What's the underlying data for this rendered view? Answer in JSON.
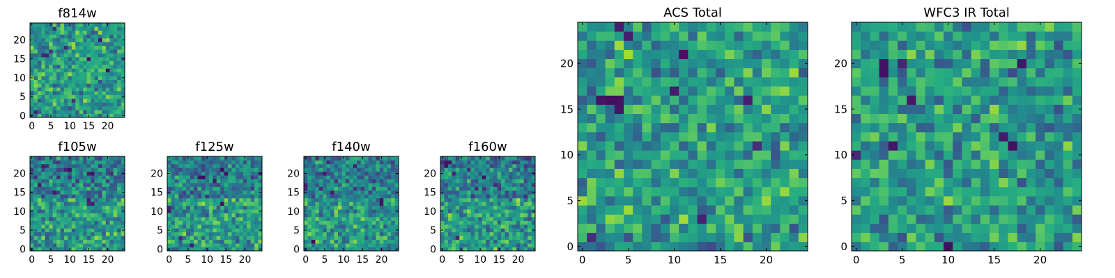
{
  "chart_data": [
    {
      "type": "heatmap",
      "title": "f814w",
      "xlabel": "",
      "ylabel": "",
      "grid_size": 25,
      "xlim": [
        -0.5,
        24.5
      ],
      "ylim": [
        -0.5,
        24.5
      ],
      "x_ticks": [
        0,
        5,
        10,
        15,
        20
      ],
      "y_ticks": [
        0,
        5,
        10,
        15,
        20
      ],
      "colormap": "viridis",
      "grid": false,
      "seed": 11,
      "low_cells": [
        [
          1,
          1
        ],
        [
          3,
          16
        ],
        [
          4,
          16
        ],
        [
          5,
          17
        ],
        [
          9,
          18
        ],
        [
          15,
          15
        ],
        [
          18,
          20
        ],
        [
          11,
          4
        ],
        [
          6,
          23
        ],
        [
          20,
          12
        ]
      ]
    },
    {
      "type": "heatmap",
      "title": "f105w",
      "xlabel": "",
      "ylabel": "",
      "grid_size": 25,
      "xlim": [
        -0.5,
        24.5
      ],
      "ylim": [
        -0.5,
        24.5
      ],
      "x_ticks": [
        0,
        5,
        10,
        15,
        20
      ],
      "y_ticks": [
        0,
        5,
        10,
        15,
        20
      ],
      "colormap": "viridis",
      "grid": false,
      "seed": 23,
      "low_cells": [
        [
          15,
          12
        ],
        [
          16,
          12
        ],
        [
          15,
          13
        ],
        [
          15,
          20
        ],
        [
          16,
          20
        ],
        [
          3,
          22
        ],
        [
          4,
          22
        ],
        [
          9,
          21
        ],
        [
          10,
          21
        ],
        [
          21,
          20
        ],
        [
          6,
          15
        ],
        [
          2,
          17
        ]
      ]
    },
    {
      "type": "heatmap",
      "title": "f125w",
      "xlabel": "",
      "ylabel": "",
      "grid_size": 25,
      "xlim": [
        -0.5,
        24.5
      ],
      "ylim": [
        -0.5,
        24.5
      ],
      "x_ticks": [
        0,
        5,
        10,
        15,
        20
      ],
      "y_ticks": [
        0,
        5,
        10,
        15,
        20
      ],
      "colormap": "viridis",
      "grid": false,
      "seed": 37,
      "low_cells": [
        [
          0,
          11
        ],
        [
          0,
          10
        ],
        [
          8,
          19
        ],
        [
          9,
          19
        ],
        [
          15,
          20
        ],
        [
          14,
          12
        ],
        [
          3,
          3
        ],
        [
          6,
          1
        ],
        [
          14,
          21
        ],
        [
          12,
          18
        ]
      ]
    },
    {
      "type": "heatmap",
      "title": "f140w",
      "xlabel": "",
      "ylabel": "",
      "grid_size": 25,
      "xlim": [
        -0.5,
        24.5
      ],
      "ylim": [
        -0.5,
        24.5
      ],
      "x_ticks": [
        0,
        5,
        10,
        15,
        20
      ],
      "y_ticks": [
        0,
        5,
        10,
        15,
        20
      ],
      "colormap": "viridis",
      "grid": false,
      "seed": 53,
      "low_cells": [
        [
          0,
          17
        ],
        [
          0,
          16
        ],
        [
          20,
          13
        ],
        [
          20,
          12
        ],
        [
          5,
          20
        ],
        [
          2,
          2
        ],
        [
          13,
          22
        ],
        [
          7,
          15
        ]
      ]
    },
    {
      "type": "heatmap",
      "title": "f160w",
      "xlabel": "",
      "ylabel": "",
      "grid_size": 25,
      "xlim": [
        -0.5,
        24.5
      ],
      "ylim": [
        -0.5,
        24.5
      ],
      "x_ticks": [
        0,
        5,
        10,
        15,
        20
      ],
      "y_ticks": [
        0,
        5,
        10,
        15,
        20
      ],
      "colormap": "viridis",
      "grid": false,
      "seed": 71,
      "low_cells": [
        [
          0,
          23
        ],
        [
          1,
          23
        ],
        [
          2,
          23
        ],
        [
          1,
          22
        ],
        [
          7,
          21
        ],
        [
          3,
          20
        ],
        [
          11,
          19
        ],
        [
          14,
          17
        ],
        [
          4,
          3
        ],
        [
          9,
          16
        ]
      ]
    },
    {
      "type": "heatmap",
      "title": "ACS Total",
      "xlabel": "",
      "ylabel": "",
      "grid_size": 25,
      "xlim": [
        -0.5,
        24.5
      ],
      "ylim": [
        -0.5,
        24.5
      ],
      "x_ticks": [
        0,
        5,
        10,
        15,
        20
      ],
      "y_ticks": [
        0,
        5,
        10,
        15,
        20
      ],
      "colormap": "viridis",
      "grid": false,
      "seed": 97,
      "low_cells": [
        [
          4,
          24
        ],
        [
          5,
          23
        ],
        [
          2,
          16
        ],
        [
          3,
          16
        ],
        [
          4,
          16
        ],
        [
          4,
          15
        ],
        [
          10,
          17
        ],
        [
          13,
          3
        ],
        [
          1,
          1
        ],
        [
          18,
          16
        ],
        [
          11,
          21
        ],
        [
          19,
          11
        ]
      ]
    },
    {
      "type": "heatmap",
      "title": "WFC3 IR Total",
      "xlabel": "",
      "ylabel": "",
      "grid_size": 25,
      "xlim": [
        -0.5,
        24.5
      ],
      "ylim": [
        -0.5,
        24.5
      ],
      "x_ticks": [
        0,
        5,
        10,
        15,
        20
      ],
      "y_ticks": [
        0,
        5,
        10,
        15,
        20
      ],
      "colormap": "viridis",
      "grid": false,
      "seed": 131,
      "low_cells": [
        [
          3,
          20
        ],
        [
          3,
          19
        ],
        [
          5,
          20
        ],
        [
          18,
          20
        ],
        [
          4,
          11
        ],
        [
          16,
          12
        ],
        [
          0,
          10
        ],
        [
          10,
          0
        ],
        [
          17,
          11
        ],
        [
          6,
          16
        ]
      ]
    }
  ]
}
